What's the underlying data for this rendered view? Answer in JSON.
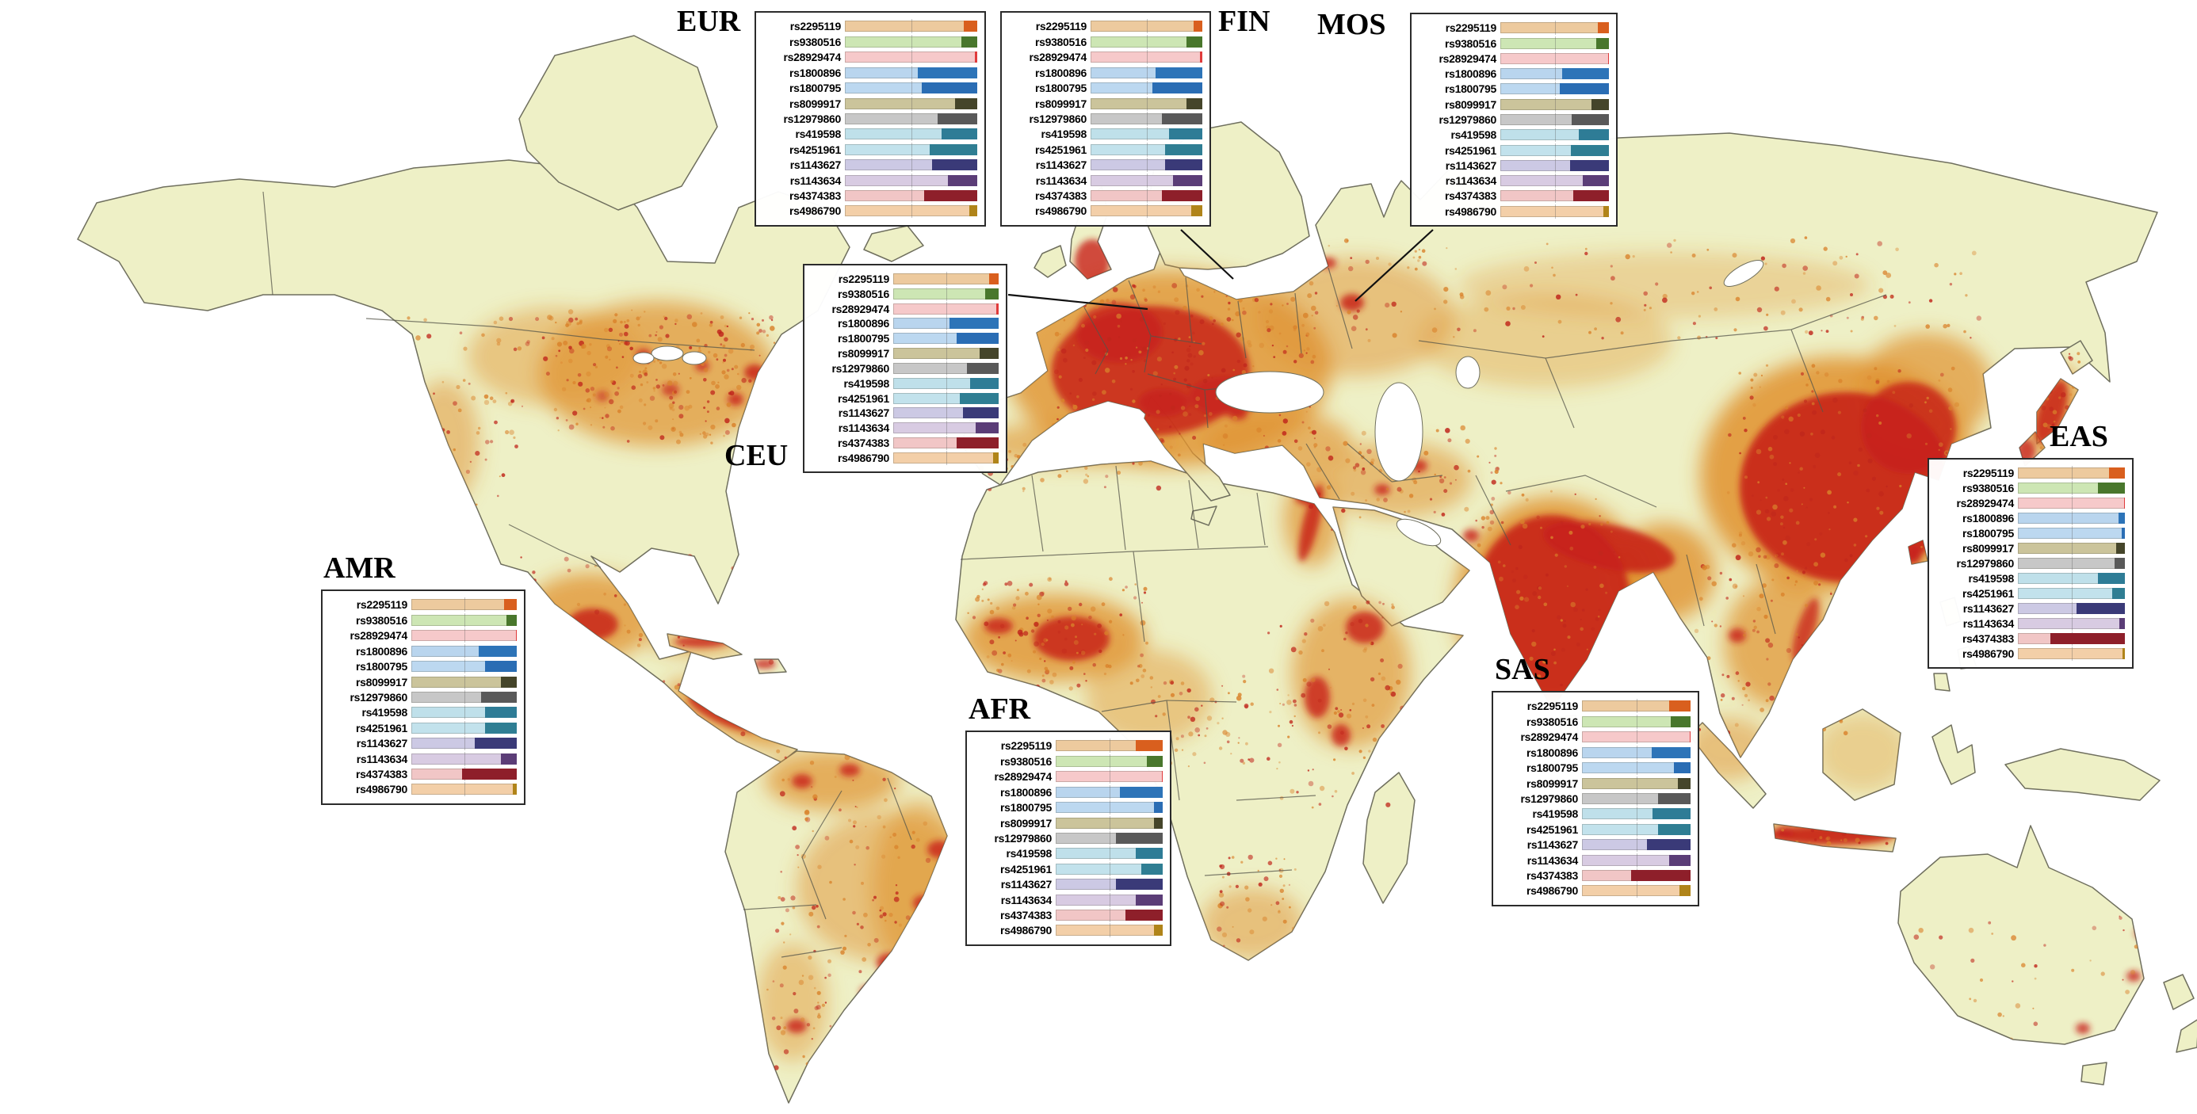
{
  "map": {
    "ocean_color": "#ffffff",
    "land_color": "#eef0c6",
    "border_color": "#5f5f50",
    "density_low_color": "#e0922f",
    "density_high_color": "#c8231b"
  },
  "chart_data": {
    "type": "bar",
    "subtype": "allele-frequency-panels-on-population-density-world-map",
    "legend_position": "none",
    "bar_scale": {
      "min": 0,
      "max": 1
    },
    "snps": [
      "rs2295119",
      "rs9380516",
      "rs28929474",
      "rs1800896",
      "rs1800795",
      "rs8099917",
      "rs12979860",
      "rs419598",
      "rs4251961",
      "rs1143627",
      "rs1143634",
      "rs4374383",
      "rs4986790"
    ],
    "snp_colors": {
      "rs2295119": {
        "light": "#edca9e",
        "dark": "#d95f1e"
      },
      "rs9380516": {
        "light": "#cde6b4",
        "dark": "#49772c"
      },
      "rs28929474": {
        "light": "#f6c9ca",
        "dark": "#e03b3b"
      },
      "rs1800896": {
        "light": "#b9d5ee",
        "dark": "#2d74b8"
      },
      "rs1800795": {
        "light": "#bcd8f0",
        "dark": "#2a6db4"
      },
      "rs8099917": {
        "light": "#cbc49b",
        "dark": "#45452a"
      },
      "rs12979860": {
        "light": "#c7c7c7",
        "dark": "#595959"
      },
      "rs419598": {
        "light": "#bfe0ea",
        "dark": "#2e7c96"
      },
      "rs4251961": {
        "light": "#c2e2ec",
        "dark": "#2f7e93"
      },
      "rs1143627": {
        "light": "#ccc9e4",
        "dark": "#3a3a78"
      },
      "rs1143634": {
        "light": "#d8cbe2",
        "dark": "#5b3d77"
      },
      "rs4374383": {
        "light": "#f1c6c6",
        "dark": "#8e1f2a"
      },
      "rs4986790": {
        "light": "#f3cfa8",
        "dark": "#b08419"
      }
    },
    "populations": [
      {
        "label": "EUR",
        "minor_allele_fraction": [
          0.1,
          0.12,
          0.02,
          0.45,
          0.42,
          0.17,
          0.3,
          0.27,
          0.36,
          0.34,
          0.22,
          0.4,
          0.06
        ]
      },
      {
        "label": "FIN",
        "minor_allele_fraction": [
          0.08,
          0.14,
          0.02,
          0.42,
          0.45,
          0.14,
          0.36,
          0.3,
          0.33,
          0.33,
          0.26,
          0.36,
          0.1
        ]
      },
      {
        "label": "MOS",
        "minor_allele_fraction": [
          0.1,
          0.12,
          0.01,
          0.43,
          0.45,
          0.16,
          0.34,
          0.28,
          0.35,
          0.36,
          0.24,
          0.33,
          0.05
        ]
      },
      {
        "label": "CEU",
        "minor_allele_fraction": [
          0.09,
          0.13,
          0.02,
          0.47,
          0.4,
          0.18,
          0.3,
          0.27,
          0.37,
          0.34,
          0.22,
          0.4,
          0.05
        ]
      },
      {
        "label": "AMR",
        "minor_allele_fraction": [
          0.12,
          0.1,
          0.01,
          0.36,
          0.3,
          0.15,
          0.34,
          0.3,
          0.3,
          0.4,
          0.15,
          0.52,
          0.04
        ]
      },
      {
        "label": "AFR",
        "minor_allele_fraction": [
          0.25,
          0.15,
          0.01,
          0.4,
          0.08,
          0.08,
          0.44,
          0.25,
          0.2,
          0.44,
          0.25,
          0.35,
          0.08
        ]
      },
      {
        "label": "SAS",
        "minor_allele_fraction": [
          0.2,
          0.18,
          0.01,
          0.36,
          0.15,
          0.12,
          0.3,
          0.35,
          0.3,
          0.4,
          0.2,
          0.55,
          0.1
        ]
      },
      {
        "label": "EAS",
        "minor_allele_fraction": [
          0.15,
          0.25,
          0.01,
          0.06,
          0.03,
          0.08,
          0.1,
          0.25,
          0.12,
          0.45,
          0.05,
          0.7,
          0.02
        ]
      }
    ]
  }
}
